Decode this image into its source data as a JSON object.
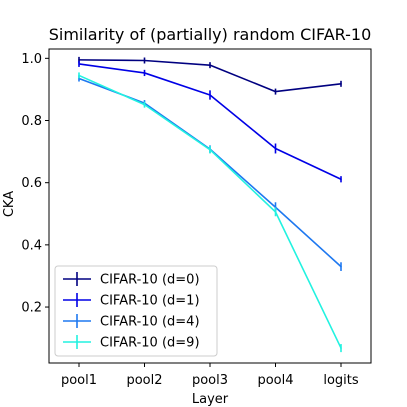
{
  "chart_data": {
    "type": "line",
    "title": "Similarity of (partially) random CIFAR-10",
    "xlabel": "Layer",
    "ylabel": "CKA",
    "categories": [
      "pool1",
      "pool2",
      "pool3",
      "pool4",
      "logits"
    ],
    "yticks": [
      "0.2",
      "0.4",
      "0.6",
      "0.8",
      "1.0"
    ],
    "ylim": [
      0.02,
      1.03
    ],
    "grid": false,
    "legend_position": "bottom-left",
    "series": [
      {
        "name": "CIFAR-10 (d=0)",
        "color": "#000080",
        "values": [
          0.995,
          0.993,
          0.978,
          0.893,
          0.918
        ],
        "errors": [
          0.004,
          0.004,
          0.005,
          0.004,
          0.004
        ]
      },
      {
        "name": "CIFAR-10 (d=1)",
        "color": "#0000e6",
        "values": [
          0.982,
          0.953,
          0.882,
          0.71,
          0.611
        ],
        "errors": [
          0.008,
          0.01,
          0.015,
          0.016,
          0.01
        ]
      },
      {
        "name": "CIFAR-10 (d=4)",
        "color": "#1e78f0",
        "values": [
          0.935,
          0.856,
          0.708,
          0.521,
          0.33
        ],
        "errors": [
          0.008,
          0.008,
          0.012,
          0.016,
          0.014
        ]
      },
      {
        "name": "CIFAR-10 (d=9)",
        "color": "#22f2e0",
        "values": [
          0.945,
          0.851,
          0.706,
          0.506,
          0.068
        ],
        "errors": [
          0.007,
          0.008,
          0.012,
          0.014,
          0.013
        ]
      }
    ]
  }
}
